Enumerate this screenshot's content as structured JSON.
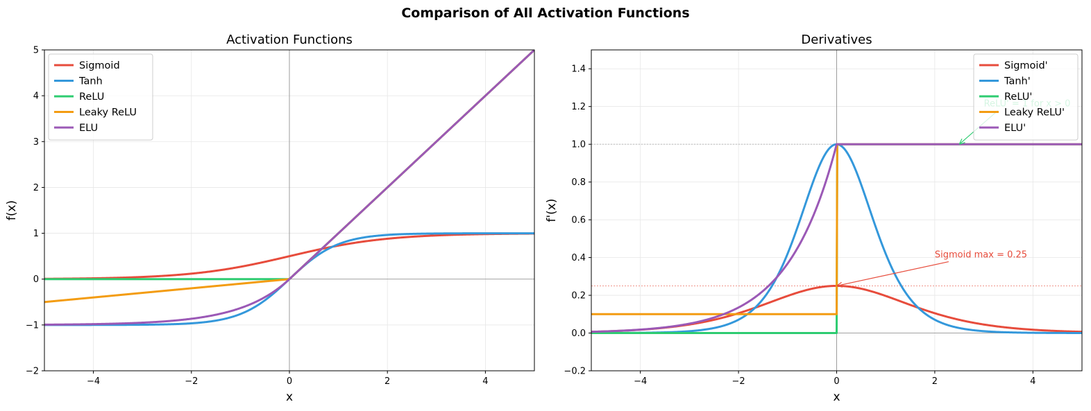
{
  "figure": {
    "suptitle": "Comparison of All Activation Functions"
  },
  "colors": {
    "sigmoid": "#e74c3c",
    "tanh": "#3498db",
    "relu": "#2ecc71",
    "leaky": "#f39c12",
    "elu": "#9b59b6"
  },
  "chart_data": [
    {
      "type": "line",
      "title": "Activation Functions",
      "xlabel": "x",
      "ylabel": "f(x)",
      "xlim": [
        -5,
        5
      ],
      "ylim": [
        -2,
        5
      ],
      "xticks": [
        -4,
        -2,
        0,
        2,
        4
      ],
      "yticks": [
        -2,
        -1,
        0,
        1,
        2,
        3,
        4,
        5
      ],
      "xtick_labels": [
        "−4",
        "−2",
        "0",
        "2",
        "4"
      ],
      "ytick_labels": [
        "−2",
        "−1",
        "0",
        "1",
        "2",
        "3",
        "4",
        "5"
      ],
      "grid": true,
      "legend_position": "top-left",
      "x": [
        -5,
        -4,
        -3,
        -2,
        -1.5,
        -1,
        -0.5,
        -0.25,
        0,
        0.25,
        0.5,
        1,
        1.5,
        2,
        3,
        4,
        5
      ],
      "series": [
        {
          "name": "Sigmoid",
          "color_key": "sigmoid",
          "values": [
            0.007,
            0.018,
            0.047,
            0.119,
            0.182,
            0.269,
            0.378,
            0.438,
            0.5,
            0.562,
            0.622,
            0.731,
            0.818,
            0.881,
            0.953,
            0.982,
            0.993
          ]
        },
        {
          "name": "Tanh",
          "color_key": "tanh",
          "values": [
            -1.0,
            -0.999,
            -0.995,
            -0.964,
            -0.905,
            -0.762,
            -0.462,
            -0.245,
            0,
            0.245,
            0.462,
            0.762,
            0.905,
            0.964,
            0.995,
            0.999,
            1.0
          ]
        },
        {
          "name": "ReLU",
          "color_key": "relu",
          "values": [
            0,
            0,
            0,
            0,
            0,
            0,
            0,
            0,
            0,
            0.25,
            0.5,
            1,
            1.5,
            2,
            3,
            4,
            5
          ]
        },
        {
          "name": "Leaky ReLU",
          "color_key": "leaky",
          "values": [
            -0.5,
            -0.4,
            -0.3,
            -0.2,
            -0.15,
            -0.1,
            -0.05,
            -0.025,
            0,
            0.25,
            0.5,
            1,
            1.5,
            2,
            3,
            4,
            5
          ]
        },
        {
          "name": "ELU",
          "color_key": "elu",
          "values": [
            -0.993,
            -0.982,
            -0.95,
            -0.865,
            -0.777,
            -0.632,
            -0.393,
            -0.221,
            0,
            0.25,
            0.5,
            1,
            1.5,
            2,
            3,
            4,
            5
          ]
        }
      ]
    },
    {
      "type": "line",
      "title": "Derivatives",
      "xlabel": "x",
      "ylabel": "f'(x)",
      "xlim": [
        -5,
        5
      ],
      "ylim": [
        -0.2,
        1.5
      ],
      "xticks": [
        -4,
        -2,
        0,
        2,
        4
      ],
      "yticks": [
        -0.2,
        0.0,
        0.2,
        0.4,
        0.6,
        0.8,
        1.0,
        1.2,
        1.4
      ],
      "xtick_labels": [
        "−4",
        "−2",
        "0",
        "2",
        "4"
      ],
      "ytick_labels": [
        "−0.2",
        "0.0",
        "0.2",
        "0.4",
        "0.6",
        "0.8",
        "1.0",
        "1.2",
        "1.4"
      ],
      "grid": true,
      "legend_position": "top-right",
      "x": [
        -5,
        -4,
        -3,
        -2,
        -1.5,
        -1,
        -0.5,
        -0.25,
        0,
        0.25,
        0.5,
        1,
        1.5,
        2,
        3,
        4,
        5
      ],
      "series": [
        {
          "name": "Sigmoid'",
          "color_key": "sigmoid",
          "values": [
            0.0066,
            0.0177,
            0.0452,
            0.105,
            0.149,
            0.197,
            0.235,
            0.246,
            0.25,
            0.246,
            0.235,
            0.197,
            0.149,
            0.105,
            0.0452,
            0.0177,
            0.0066
          ]
        },
        {
          "name": "Tanh'",
          "color_key": "tanh",
          "values": [
            0.0002,
            0.0013,
            0.0099,
            0.0707,
            0.181,
            0.42,
            0.786,
            0.94,
            1.0,
            0.94,
            0.786,
            0.42,
            0.181,
            0.0707,
            0.0099,
            0.0013,
            0.0002
          ]
        },
        {
          "name": "ReLU'",
          "color_key": "relu",
          "values": [
            0,
            0,
            0,
            0,
            0,
            0,
            0,
            0,
            1,
            1,
            1,
            1,
            1,
            1,
            1,
            1,
            1
          ]
        },
        {
          "name": "Leaky ReLU'",
          "color_key": "leaky",
          "values": [
            0.1,
            0.1,
            0.1,
            0.1,
            0.1,
            0.1,
            0.1,
            0.1,
            1,
            1,
            1,
            1,
            1,
            1,
            1,
            1,
            1
          ]
        },
        {
          "name": "ELU'",
          "color_key": "elu",
          "values": [
            0.0067,
            0.0183,
            0.0498,
            0.135,
            0.223,
            0.368,
            0.607,
            0.779,
            1.0,
            1,
            1,
            1,
            1,
            1,
            1,
            1,
            1
          ]
        }
      ],
      "reference_lines": [
        {
          "y": 1.0,
          "color_key": "gray"
        },
        {
          "y": 0.25,
          "color_key": "sigmoid"
        }
      ],
      "annotations": [
        {
          "text": "Sigmoid max = 0.25",
          "color_key": "sigmoid",
          "xy": [
            0,
            0.25
          ],
          "xytext": [
            2,
            0.4
          ]
        },
        {
          "text": "ReLU' = 1 for x > 0",
          "color_key": "relu",
          "xy": [
            2.5,
            1.0
          ],
          "xytext": [
            3,
            1.2
          ]
        }
      ]
    }
  ]
}
